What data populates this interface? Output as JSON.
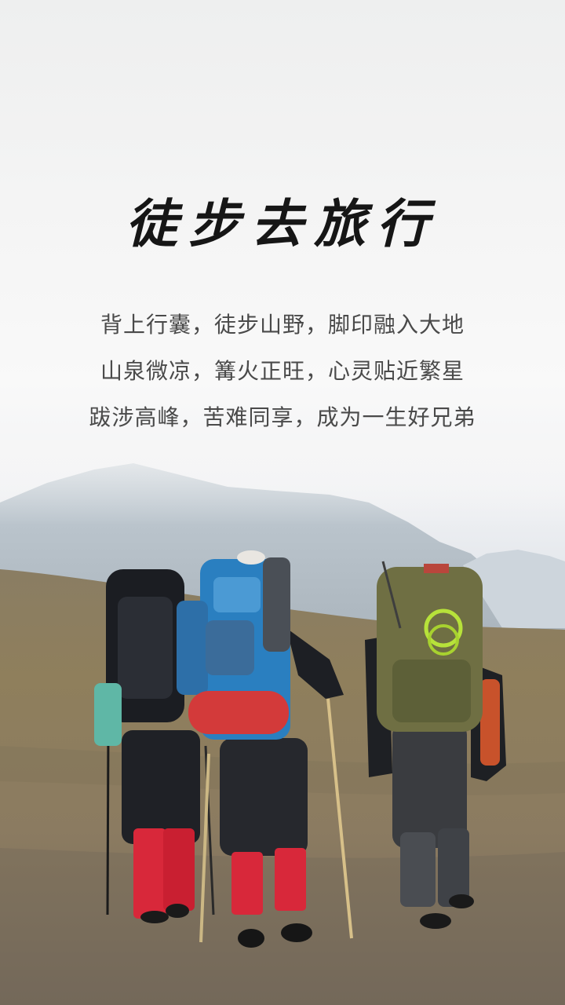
{
  "headline": "徒步去旅行",
  "lines": [
    "背上行囊，徒步山野，脚印融入大地",
    "山泉微凉，篝火正旺，心灵贴近繁星",
    "跋涉高峰，苦难同享，成为一生好兄弟"
  ],
  "scene": {
    "subject": "three-hikers-walking-away",
    "colors": {
      "sky": "#f3f3f3",
      "mountain": "#b9c3cc",
      "ground": "#8a7b5e",
      "gaiters": "#d8283a"
    }
  }
}
